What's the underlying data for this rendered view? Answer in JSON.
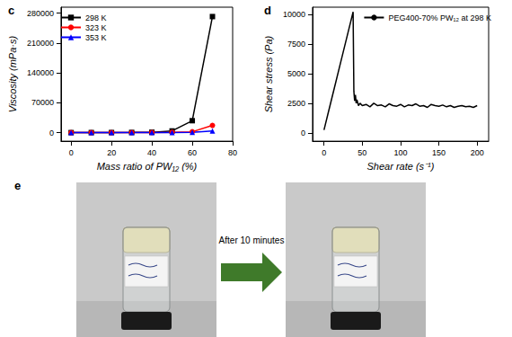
{
  "chart_data": [
    {
      "type": "line",
      "title": "c",
      "x_label": "Mass ratio of PW₁₂ (%)",
      "y_label": "Viscosity (mPa·s)",
      "xlim": [
        -5,
        80
      ],
      "xticks": [
        0,
        20,
        40,
        60,
        80
      ],
      "ylim": [
        -20000,
        294000
      ],
      "yticks": [
        0,
        70000,
        140000,
        210000,
        280000
      ],
      "grid": false,
      "legend": "upper left",
      "series": [
        {
          "name": "298 K",
          "color": "#000000",
          "marker": "square",
          "x": [
            0,
            10,
            20,
            30,
            40,
            50,
            60,
            70
          ],
          "values": [
            100,
            200,
            300,
            500,
            1000,
            4000,
            28000,
            272000
          ]
        },
        {
          "name": "323 K",
          "color": "#ff0000",
          "marker": "circle",
          "x": [
            0,
            10,
            20,
            30,
            40,
            50,
            60,
            70
          ],
          "values": [
            50,
            80,
            120,
            200,
            400,
            900,
            2000,
            17000
          ]
        },
        {
          "name": "353 K",
          "color": "#0000ff",
          "marker": "triangle",
          "x": [
            0,
            10,
            20,
            30,
            40,
            50,
            60,
            70
          ],
          "values": [
            30,
            50,
            70,
            100,
            150,
            300,
            500,
            4000
          ]
        }
      ]
    },
    {
      "type": "line",
      "title": "d",
      "x_label": "Shear rate (s⁻¹)",
      "y_label": "Shear stress (Pa)",
      "xlim": [
        -15,
        215
      ],
      "xticks": [
        0,
        50,
        100,
        150,
        200
      ],
      "ylim": [
        -700,
        10600
      ],
      "yticks": [
        0,
        2500,
        5000,
        7500,
        10000
      ],
      "grid": false,
      "legend": "upper right",
      "series": [
        {
          "name": "PEG400-70% PW₁₂ at 298 K",
          "color": "#000000",
          "marker": "none",
          "x": [
            0,
            5,
            10,
            15,
            20,
            25,
            30,
            35,
            38,
            39,
            40,
            41,
            42,
            43,
            45,
            47,
            50,
            55,
            60,
            65,
            70,
            75,
            80,
            85,
            90,
            95,
            100,
            105,
            110,
            115,
            120,
            125,
            130,
            135,
            140,
            145,
            150,
            155,
            160,
            165,
            170,
            175,
            180,
            185,
            190,
            195,
            200
          ],
          "values": [
            250,
            1560,
            2870,
            4180,
            5490,
            6800,
            8110,
            9420,
            10200,
            3500,
            2700,
            3200,
            2500,
            2800,
            2300,
            2500,
            2300,
            2400,
            2200,
            2500,
            2300,
            2350,
            2200,
            2450,
            2300,
            2250,
            2400,
            2200,
            2350,
            2300,
            2450,
            2250,
            2300,
            2150,
            2400,
            2300,
            2250,
            2350,
            2200,
            2300,
            2150,
            2250,
            2300,
            2200,
            2250,
            2150,
            2300
          ]
        }
      ]
    }
  ],
  "panel_e": {
    "title": "e",
    "arrow_text": "After 10 minutes"
  }
}
